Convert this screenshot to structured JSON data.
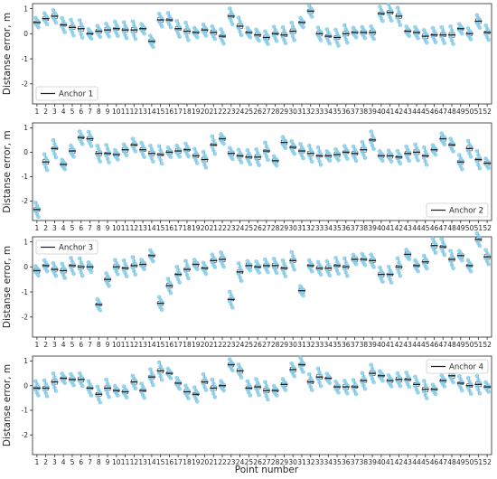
{
  "figure": {
    "xlabel": "Point number"
  },
  "chart_data": [
    {
      "type": "box",
      "legend": "Anchor 1",
      "legend_position": "bottom-left",
      "ylabel": "Distanse error, m",
      "ylim": [
        -2.8,
        1.2
      ],
      "yticks": [
        -2,
        -1,
        0,
        1
      ],
      "categories": [
        "1",
        "2",
        "3",
        "4",
        "5",
        "6",
        "7",
        "8",
        "9",
        "10",
        "11",
        "12",
        "13",
        "14",
        "15",
        "16",
        "17",
        "18",
        "19",
        "20",
        "21",
        "22",
        "23",
        "24",
        "25",
        "26",
        "27",
        "28",
        "29",
        "30",
        "31",
        "32",
        "33",
        "34",
        "35",
        "36",
        "37",
        "38",
        "39",
        "40",
        "41",
        "42",
        "43",
        "44",
        "45",
        "46",
        "47",
        "48",
        "49",
        "50",
        "51",
        "52"
      ],
      "medians": [
        0.45,
        0.6,
        0.7,
        0.35,
        0.25,
        0.2,
        0.0,
        0.1,
        0.15,
        0.2,
        0.15,
        0.15,
        0.2,
        -0.3,
        0.55,
        0.55,
        0.2,
        0.1,
        0.05,
        0.15,
        0.05,
        -0.1,
        0.7,
        0.3,
        0.05,
        -0.05,
        -0.15,
        0.0,
        -0.05,
        0.1,
        0.45,
        0.9,
        0.0,
        -0.1,
        -0.15,
        0.0,
        0.05,
        0.05,
        0.05,
        0.8,
        0.85,
        0.7,
        0.1,
        0.05,
        -0.1,
        -0.05,
        -0.05,
        -0.05,
        0.2,
        0.0,
        0.5,
        0.05
      ]
    },
    {
      "type": "box",
      "legend": "Anchor 2",
      "legend_position": "bottom-right",
      "ylabel": "Distanse error, m",
      "ylim": [
        -2.8,
        1.2
      ],
      "yticks": [
        -2,
        -1,
        0,
        1
      ],
      "categories": [
        "1",
        "2",
        "3",
        "4",
        "5",
        "6",
        "7",
        "8",
        "9",
        "10",
        "11",
        "12",
        "13",
        "14",
        "15",
        "16",
        "17",
        "18",
        "19",
        "20",
        "21",
        "22",
        "23",
        "24",
        "25",
        "26",
        "27",
        "28",
        "29",
        "30",
        "31",
        "32",
        "33",
        "34",
        "35",
        "36",
        "37",
        "38",
        "39",
        "40",
        "41",
        "42",
        "43",
        "44",
        "45",
        "46",
        "47",
        "48",
        "49",
        "50",
        "51",
        "52"
      ],
      "medians": [
        -2.35,
        -0.4,
        0.15,
        -0.5,
        0.05,
        0.6,
        0.55,
        -0.05,
        -0.05,
        -0.1,
        0.1,
        0.3,
        0.1,
        -0.05,
        -0.1,
        0.0,
        0.05,
        0.1,
        -0.15,
        -0.3,
        0.3,
        0.55,
        -0.05,
        -0.15,
        -0.2,
        -0.2,
        0.05,
        -0.35,
        0.4,
        0.2,
        0.05,
        -0.05,
        -0.15,
        -0.15,
        -0.1,
        0.0,
        -0.05,
        0.1,
        0.5,
        -0.15,
        -0.15,
        -0.2,
        -0.05,
        0.0,
        -0.15,
        0.1,
        0.55,
        0.3,
        -0.4,
        0.15,
        -0.3,
        -0.45
      ]
    },
    {
      "type": "box",
      "legend": "Anchor 3",
      "legend_position": "top-left",
      "ylabel": "Distanse error, m",
      "ylim": [
        -2.8,
        1.2
      ],
      "yticks": [
        -2,
        -1,
        0,
        1
      ],
      "categories": [
        "1",
        "2",
        "3",
        "4",
        "5",
        "6",
        "7",
        "8",
        "9",
        "10",
        "11",
        "12",
        "13",
        "14",
        "15",
        "16",
        "17",
        "18",
        "19",
        "20",
        "21",
        "22",
        "23",
        "24",
        "25",
        "26",
        "27",
        "28",
        "29",
        "30",
        "31",
        "32",
        "33",
        "34",
        "35",
        "36",
        "37",
        "38",
        "39",
        "40",
        "41",
        "42",
        "43",
        "44",
        "45",
        "46",
        "47",
        "48",
        "49",
        "50",
        "51",
        "52"
      ],
      "medians": [
        -0.15,
        0.05,
        -0.1,
        -0.15,
        0.05,
        0.0,
        0.0,
        -1.5,
        -0.5,
        0.0,
        -0.05,
        0.05,
        0.1,
        0.45,
        -1.45,
        -0.75,
        -0.3,
        -0.1,
        0.1,
        -0.05,
        0.25,
        0.3,
        -1.3,
        -0.2,
        0.05,
        0.0,
        0.05,
        0.05,
        -0.05,
        0.25,
        -0.95,
        0.05,
        -0.05,
        -0.05,
        0.05,
        0.0,
        0.3,
        0.3,
        0.25,
        -0.3,
        -0.3,
        0.0,
        0.5,
        0.05,
        0.2,
        0.85,
        0.8,
        0.3,
        0.45,
        0.05,
        1.1,
        0.4
      ]
    },
    {
      "type": "box",
      "legend": "Anchor 4",
      "legend_position": "top-right",
      "ylabel": "Distanse error, m",
      "ylim": [
        -2.8,
        1.2
      ],
      "yticks": [
        -2,
        -1,
        0,
        1
      ],
      "categories": [
        "1",
        "2",
        "3",
        "4",
        "5",
        "6",
        "7",
        "8",
        "9",
        "10",
        "11",
        "12",
        "13",
        "14",
        "15",
        "16",
        "17",
        "18",
        "19",
        "20",
        "21",
        "22",
        "23",
        "24",
        "25",
        "26",
        "27",
        "28",
        "29",
        "30",
        "31",
        "32",
        "33",
        "34",
        "35",
        "36",
        "37",
        "38",
        "39",
        "40",
        "41",
        "42",
        "43",
        "44",
        "45",
        "46",
        "47",
        "48",
        "49",
        "50",
        "51",
        "52"
      ],
      "medians": [
        -0.1,
        -0.1,
        0.15,
        0.3,
        0.25,
        0.25,
        -0.1,
        -0.35,
        -0.1,
        -0.2,
        -0.25,
        0.15,
        -0.2,
        0.35,
        0.6,
        0.5,
        0.1,
        -0.25,
        -0.35,
        0.15,
        -0.1,
        0.0,
        0.85,
        0.6,
        -0.1,
        -0.05,
        -0.2,
        -0.2,
        0.05,
        0.65,
        0.85,
        0.15,
        0.35,
        0.3,
        -0.05,
        -0.05,
        -0.05,
        0.2,
        0.5,
        0.4,
        0.2,
        0.25,
        0.25,
        0.05,
        -0.15,
        -0.15,
        0.2,
        0.4,
        0.1,
        0.0,
        0.05,
        -0.05
      ]
    }
  ]
}
